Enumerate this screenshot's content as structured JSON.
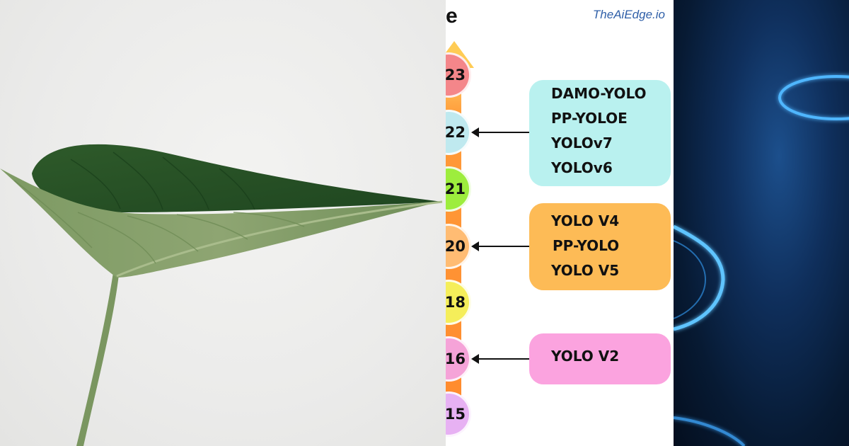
{
  "brand": "TheAiEdge.io",
  "title_fragment": "e",
  "timeline": [
    {
      "year_label": "23",
      "color": "#f4868a"
    },
    {
      "year_label": "22",
      "color": "#bfe9ef"
    },
    {
      "year_label": "21",
      "color": "#9ded3d"
    },
    {
      "year_label": "20",
      "color": "#ffbc73"
    },
    {
      "year_label": "18",
      "color": "#f5ee5a"
    },
    {
      "year_label": "16",
      "color": "#f5a3d8"
    },
    {
      "year_label": "15",
      "color": "#e7b1f3"
    }
  ],
  "model_groups": [
    {
      "year_label": "22",
      "color": "#b9f1ef",
      "models": [
        "DAMO-YOLO",
        "PP-YOLOE",
        "YOLOv7",
        "YOLOv6"
      ]
    },
    {
      "year_label": "20",
      "color": "#fdbb56",
      "models": [
        "YOLO V4",
        "PP-YOLO",
        "YOLO V5"
      ]
    },
    {
      "year_label": "16",
      "color": "#fba3df",
      "models": [
        "YOLO V2"
      ]
    }
  ]
}
